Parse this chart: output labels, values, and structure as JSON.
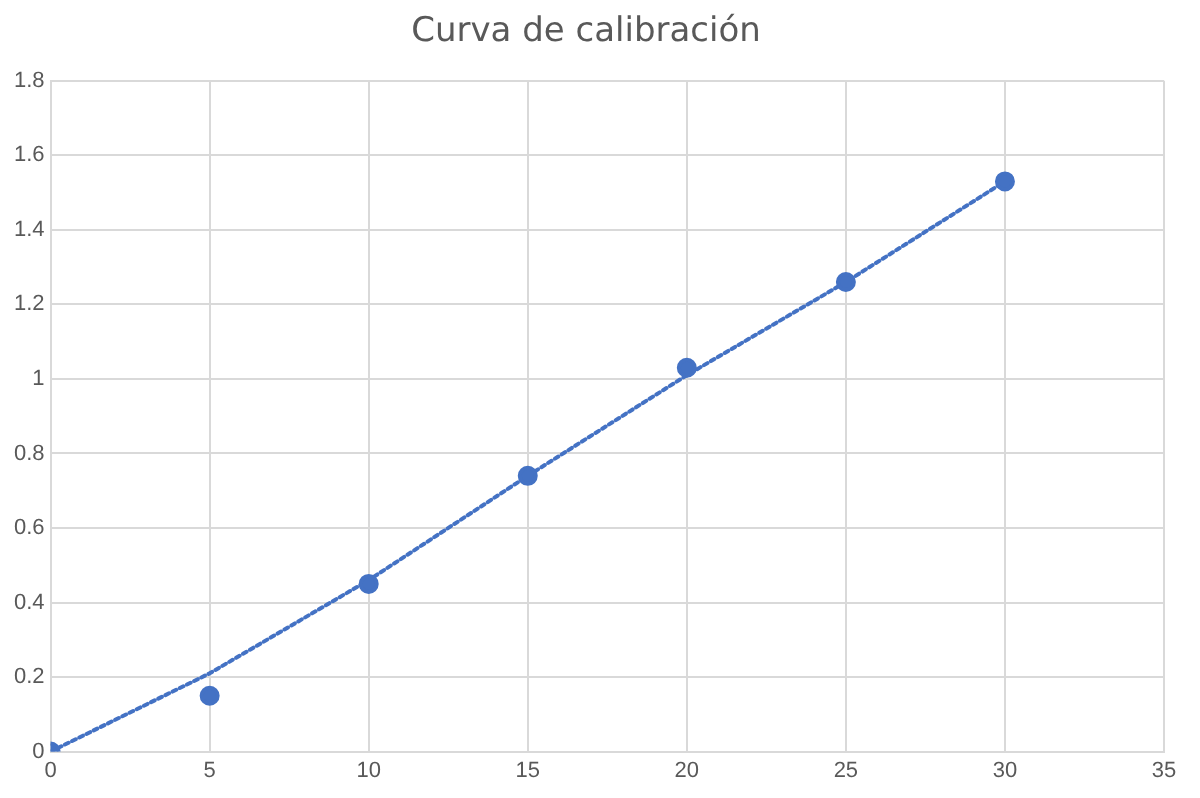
{
  "chart_data": {
    "type": "scatter",
    "title": "Curva de calibración",
    "xlim": [
      0,
      35
    ],
    "xticks": [
      0,
      5,
      10,
      15,
      20,
      25,
      30,
      35
    ],
    "ylim": [
      0,
      1.8
    ],
    "yticks": [
      0,
      0.2,
      0.4,
      0.6,
      0.8,
      1,
      1.2,
      1.4,
      1.6,
      1.8
    ],
    "grid": true,
    "legend": false,
    "marker": "circle",
    "series": [
      {
        "type": "scatter",
        "color": "#4472c4",
        "x": [
          0,
          5,
          10,
          15,
          20,
          25,
          30
        ],
        "values": [
          0,
          0.15,
          0.45,
          0.74,
          1.03,
          1.26,
          1.53
        ]
      },
      {
        "type": "line",
        "color": "#4472c4",
        "line_style": "dotted",
        "marker": "none",
        "x": [
          0,
          5,
          10,
          15,
          20,
          25,
          30
        ],
        "values": [
          0,
          0.21,
          0.46,
          0.74,
          1.01,
          1.26,
          1.53
        ]
      }
    ]
  }
}
